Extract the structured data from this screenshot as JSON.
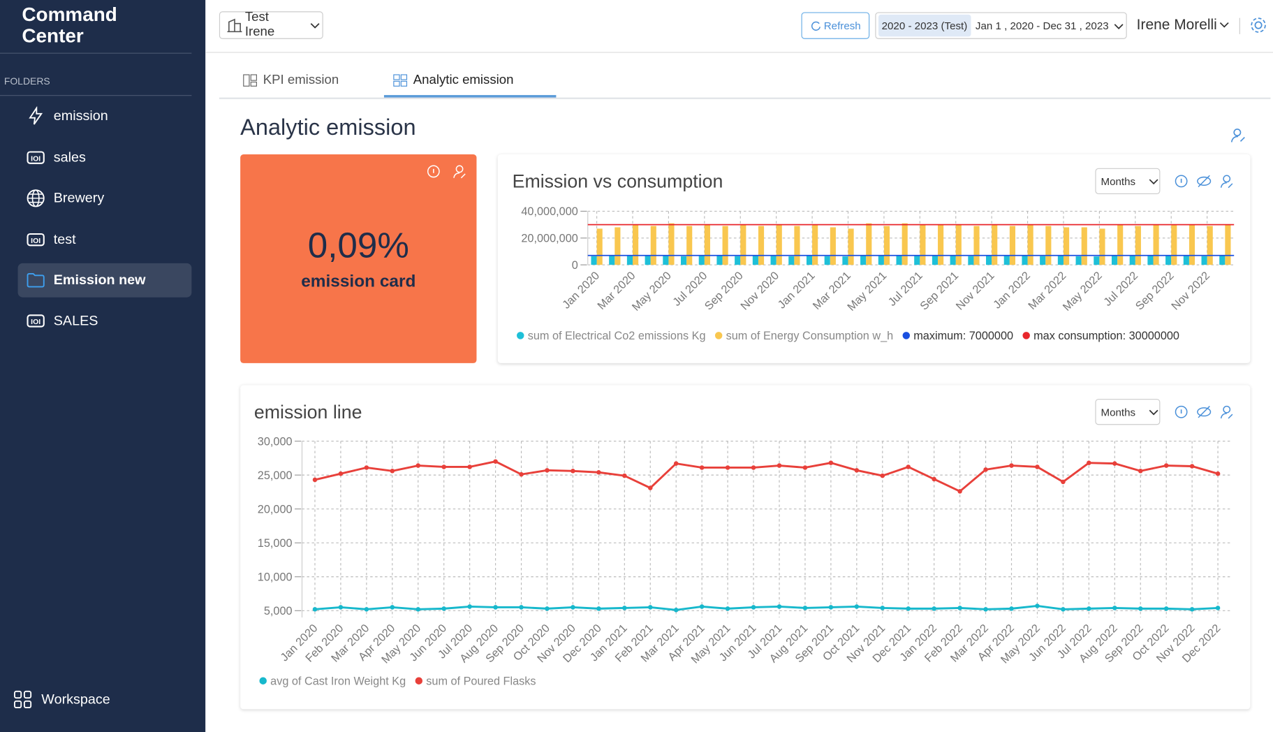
{
  "sidebar": {
    "title": "Command Center",
    "folders_label": "FOLDERS",
    "items": [
      "emission",
      "sales",
      "Brewery",
      "test",
      "Emission new",
      "SALES"
    ],
    "active_item": "Emission new",
    "workspace": "Workspace"
  },
  "header": {
    "workspace_select": "Test Irene",
    "refresh": "Refresh",
    "period_badge": "2020 - 2023 (Test)",
    "date_range": "Jan 1 , 2020 - Dec 31 , 2023",
    "user": "Irene Morelli"
  },
  "tabs": [
    "KPI emission",
    "Analytic emission"
  ],
  "active_tab": "Analytic emission",
  "page_title": "Analytic emission",
  "kpi_card": {
    "value": "0,09%",
    "label": "emission card"
  },
  "chart_data": [
    {
      "type": "bar",
      "title": "Emission vs consumption",
      "period_select": "Months",
      "categories": [
        "Jan 2020",
        null,
        "Mar 2020",
        null,
        "May 2020",
        null,
        "Jul 2020",
        null,
        "Sep 2020",
        null,
        "Nov 2020",
        null,
        "Jan 2021",
        null,
        "Mar 2021",
        null,
        "May 2021",
        null,
        "Jul 2021",
        null,
        "Sep 2021",
        null,
        "Nov 2021",
        null,
        "Jan 2022",
        null,
        "Mar 2022",
        null,
        "May 2022",
        null,
        "Jul 2022",
        null,
        "Sep 2022",
        null,
        "Nov 2022",
        null
      ],
      "series": [
        {
          "name": "sum of Electrical Co2 emissions Kg",
          "color": "#1ec0d8",
          "values": [
            6500000,
            6800000,
            6600000,
            6700000,
            6900000,
            6400000,
            6600000,
            6700000,
            6500000,
            6800000,
            6600000,
            6400000,
            6700000,
            6500000,
            6300000,
            6800000,
            6600000,
            6900000,
            6700000,
            6600000,
            6800000,
            6500000,
            6700000,
            6600000,
            6900000,
            6500000,
            6600000,
            6400000,
            6300000,
            6700000,
            6600000,
            6800000,
            6700000,
            6600000,
            6500000,
            6700000
          ]
        },
        {
          "name": "sum of Energy Consumption w_h",
          "color": "#f9c74f",
          "values": [
            27000000,
            28000000,
            30000000,
            29000000,
            31000000,
            29000000,
            30000000,
            29000000,
            30000000,
            29000000,
            30000000,
            29000000,
            30000000,
            28000000,
            27000000,
            31000000,
            29000000,
            31000000,
            30000000,
            30000000,
            30000000,
            29000000,
            30000000,
            29000000,
            30000000,
            29000000,
            28000000,
            28000000,
            27000000,
            30000000,
            29000000,
            30000000,
            30000000,
            30000000,
            29000000,
            30000000
          ]
        }
      ],
      "reference_lines": [
        {
          "name": "maximum: 7000000",
          "value": 7000000,
          "color": "#1a4fe0"
        },
        {
          "name": "max consumption: 30000000",
          "value": 30000000,
          "color": "#e8262b"
        }
      ],
      "ylim": [
        0,
        40000000
      ],
      "yticks": [
        0,
        {
          "value": 20000000,
          "label": "20,000,000"
        },
        {
          "value": 40000000,
          "label": "40,000,000"
        }
      ],
      "grid": true,
      "legend": "bottom"
    },
    {
      "type": "line",
      "title": "emission line",
      "period_select": "Months",
      "categories": [
        "Jan 2020",
        "Feb 2020",
        "Mar 2020",
        "Apr 2020",
        "May 2020",
        "Jun 2020",
        "Jul 2020",
        "Aug 2020",
        "Sep 2020",
        "Oct 2020",
        "Nov 2020",
        "Dec 2020",
        "Jan 2021",
        "Feb 2021",
        "Mar 2021",
        "Apr 2021",
        "May 2021",
        "Jun 2021",
        "Jul 2021",
        "Aug 2021",
        "Sep 2021",
        "Oct 2021",
        "Nov 2021",
        "Dec 2021",
        "Jan 2022",
        "Feb 2022",
        "Mar 2022",
        "Apr 2022",
        "May 2022",
        "Jun 2022",
        "Jul 2022",
        "Aug 2022",
        "Sep 2022",
        "Oct 2022",
        "Nov 2022",
        "Dec 2022"
      ],
      "series": [
        {
          "name": "avg of Cast Iron Weight Kg",
          "color": "#17b8cc",
          "values": [
            5200,
            5500,
            5200,
            5500,
            5200,
            5300,
            5600,
            5500,
            5500,
            5300,
            5500,
            5300,
            5400,
            5500,
            5100,
            5600,
            5300,
            5500,
            5600,
            5400,
            5500,
            5600,
            5400,
            5300,
            5300,
            5400,
            5200,
            5300,
            5700,
            5200,
            5300,
            5400,
            5300,
            5300,
            5200,
            5400
          ]
        },
        {
          "name": "sum of Poured Flasks",
          "color": "#e8403a",
          "values": [
            24300,
            25200,
            26100,
            25600,
            26400,
            26200,
            26200,
            27000,
            25100,
            25700,
            25600,
            25400,
            24900,
            23100,
            26700,
            26100,
            26100,
            26100,
            26400,
            26100,
            26800,
            25700,
            24900,
            26200,
            24400,
            22600,
            25800,
            26400,
            26200,
            24000,
            26800,
            26700,
            25600,
            26400,
            26300,
            25200
          ]
        }
      ],
      "ylim": [
        4000,
        30000
      ],
      "yticks": [
        {
          "value": 5000,
          "label": "5,000"
        },
        {
          "value": 10000,
          "label": "10,000"
        },
        {
          "value": 15000,
          "label": "15,000"
        },
        {
          "value": 20000,
          "label": "20,000"
        },
        {
          "value": 25000,
          "label": "25,000"
        },
        {
          "value": 30000,
          "label": "30,000"
        }
      ],
      "grid": true,
      "legend": "bottom"
    }
  ]
}
